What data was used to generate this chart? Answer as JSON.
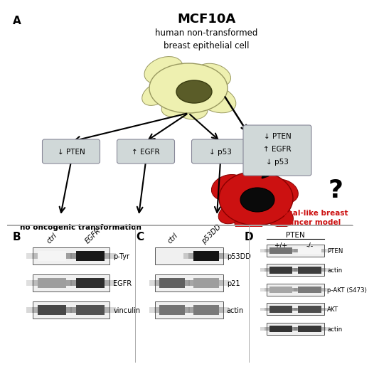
{
  "title": "MCF10A",
  "subtitle": "human non-transformed\nbreast epithelial cell",
  "panel_A_label": "A",
  "panel_B_label": "B",
  "panel_C_label": "C",
  "panel_D_label": "D",
  "no_oncogenic_text": "no oncogenic transformation",
  "basal_like_text": "basal-like breast\ncancer model",
  "pten_down": "↓ PTEN",
  "egfr_up": "↑ EGFR",
  "p53_down": "↓ p53",
  "question_mark": "?",
  "panel_B_cols": [
    "ctrl",
    "EGFR"
  ],
  "panel_B_rows": [
    "p-Tyr",
    "EGFR",
    "vinculin"
  ],
  "panel_C_cols": [
    "ctrl",
    "p53DD"
  ],
  "panel_C_rows": [
    "p53DD",
    "p21",
    "actin"
  ],
  "panel_D_header": "PTEN",
  "panel_D_cols": [
    "+/+",
    "-/-"
  ],
  "panel_D_rows": [
    "PTEN",
    "actin",
    "p-AKT (S473)",
    "AKT",
    "actin"
  ],
  "bg_color": "#ffffff",
  "cell_color_light": "#eef0b0",
  "cell_nucleus_color": "#5a5c28",
  "cancer_cell_color": "#cc1111",
  "cancer_nucleus_color": "#0a0a0a",
  "box_bg": "#d0d8d8",
  "box_edge": "#888898",
  "arrow_color": "#111111",
  "red_text_color": "#cc1111",
  "label_fontsize": 11,
  "title_fontsize": 13,
  "text_fontsize": 8,
  "blot_bg": "#e8e8e8",
  "blot_edge": "#555555"
}
